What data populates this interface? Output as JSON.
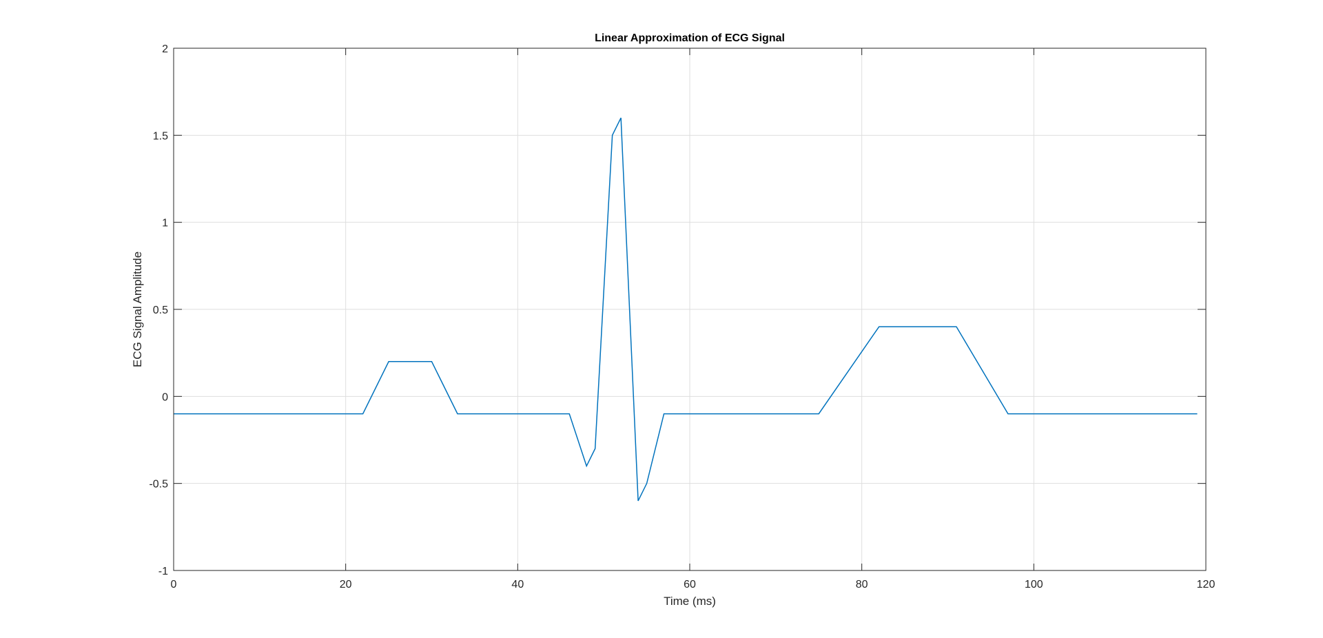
{
  "chart_data": {
    "type": "line",
    "title": "Linear Approximation of ECG Signal",
    "xlabel": "Time (ms)",
    "ylabel": "ECG Signal Amplitude",
    "xlim": [
      0,
      120
    ],
    "ylim": [
      -1,
      2
    ],
    "xticks": [
      0,
      20,
      40,
      60,
      80,
      100,
      120
    ],
    "yticks": [
      -1,
      -0.5,
      0,
      0.5,
      1,
      1.5,
      2
    ],
    "xtick_labels": [
      "0",
      "20",
      "40",
      "60",
      "80",
      "100",
      "120"
    ],
    "ytick_labels": [
      "-1",
      "-0.5",
      "0",
      "0.5",
      "1",
      "1.5",
      "2"
    ],
    "grid": true,
    "series": [
      {
        "color": "#0072bd",
        "x": [
          0,
          22,
          25,
          30,
          33,
          46,
          48,
          49,
          51,
          52,
          54,
          55,
          57,
          75,
          82,
          91,
          97,
          119
        ],
        "y": [
          -0.1,
          -0.1,
          0.2,
          0.2,
          -0.1,
          -0.1,
          -0.4,
          -0.3,
          1.5,
          1.6,
          -0.6,
          -0.5,
          -0.1,
          -0.1,
          0.4,
          0.4,
          -0.1,
          -0.1
        ]
      }
    ]
  }
}
